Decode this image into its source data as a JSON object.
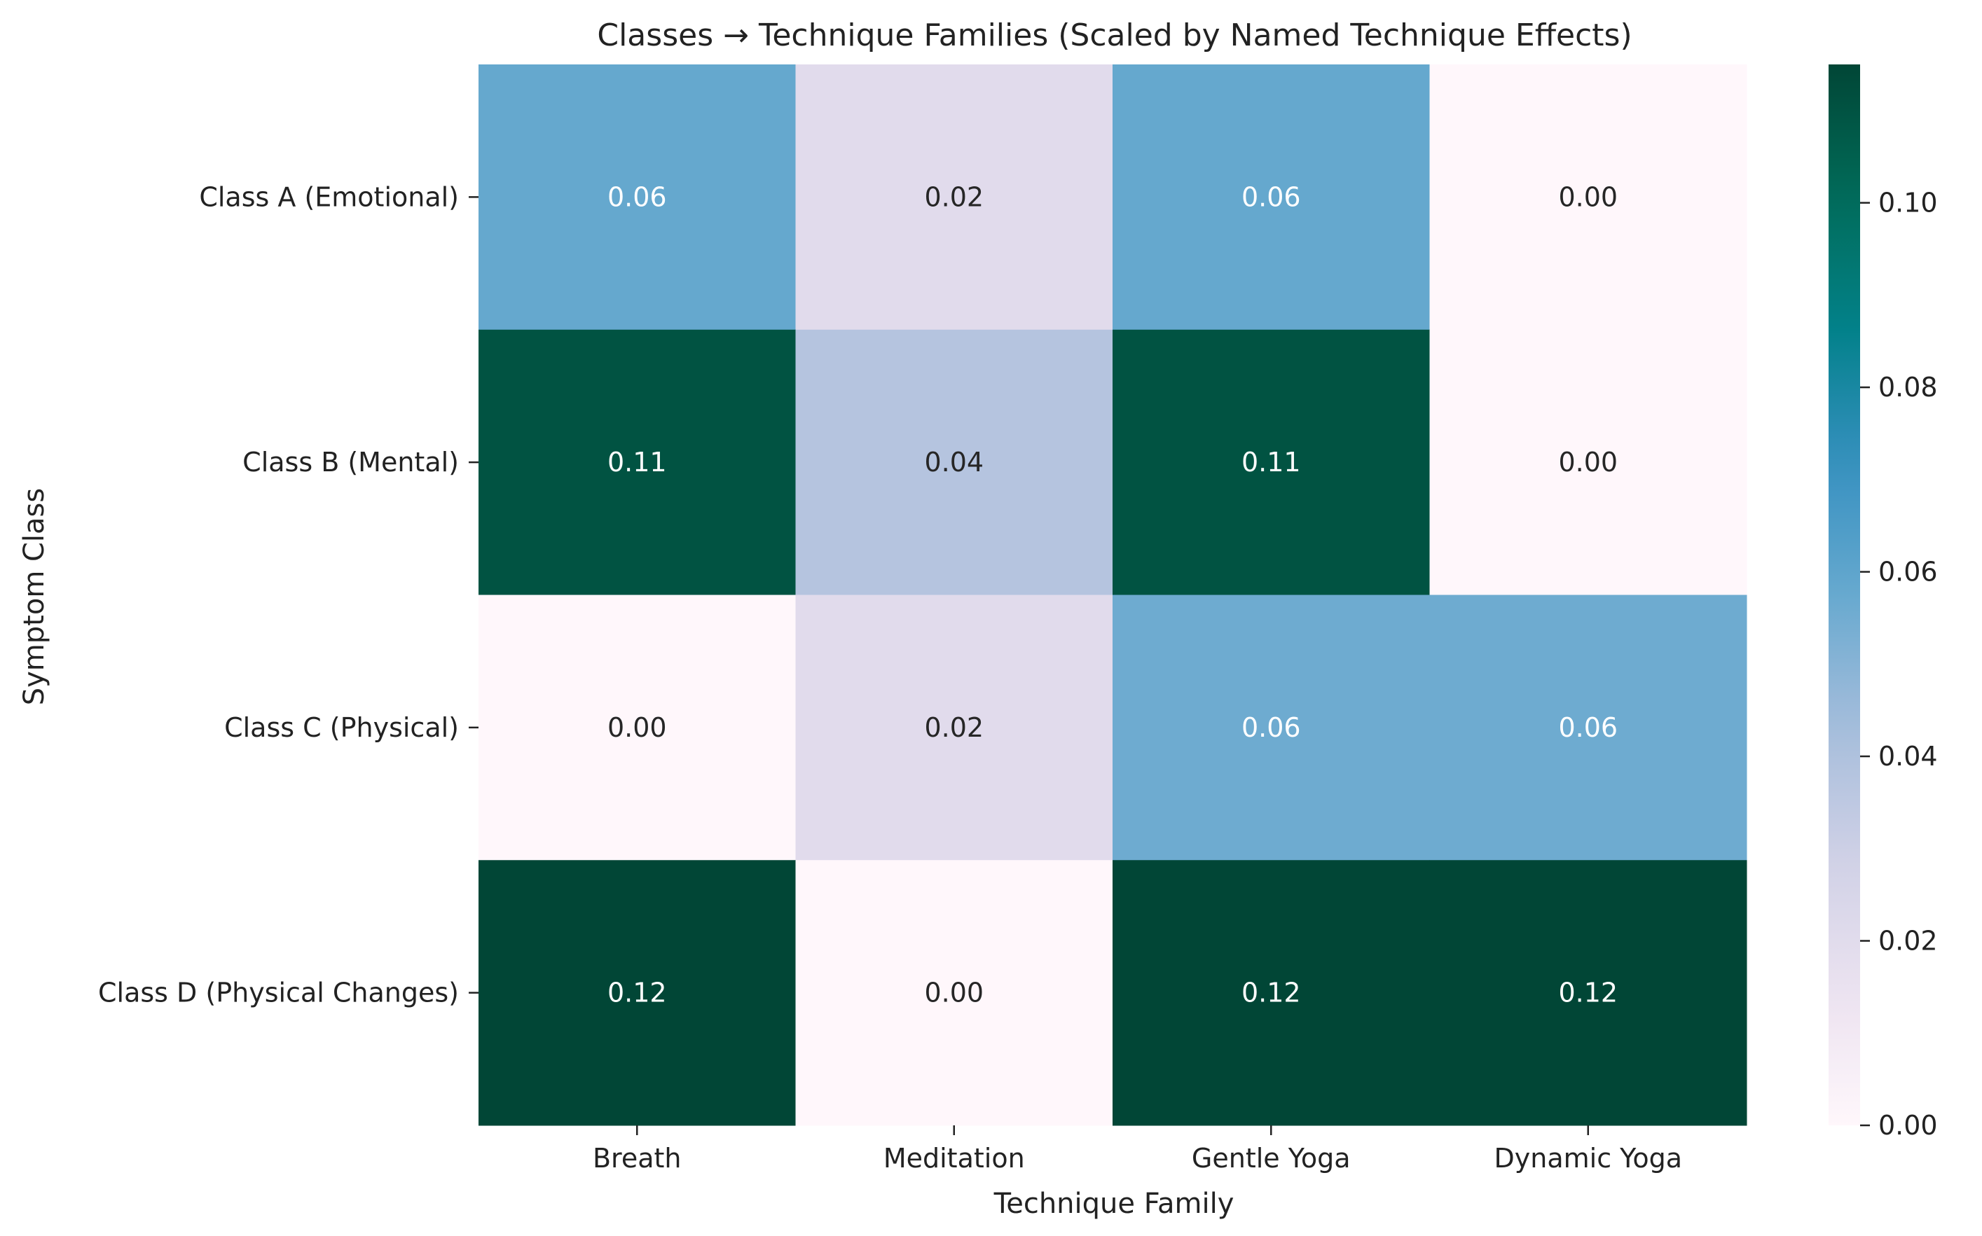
{
  "chart_data": {
    "type": "heatmap",
    "title": "Classes → Technique Families (Scaled by Named Technique Effects)",
    "xlabel": "Technique Family",
    "ylabel": "Symptom Class",
    "x_categories": [
      "Breath",
      "Meditation",
      "Gentle Yoga",
      "Dynamic Yoga"
    ],
    "y_categories": [
      "Class A (Emotional)",
      "Class B (Mental)",
      "Class C (Physical)",
      "Class D (Physical Changes)"
    ],
    "values": [
      [
        0.058,
        0.02,
        0.058,
        0.0
      ],
      [
        0.11,
        0.038,
        0.11,
        0.0
      ],
      [
        0.0,
        0.02,
        0.056,
        0.056
      ],
      [
        0.115,
        0.0,
        0.115,
        0.115
      ]
    ],
    "cell_labels": [
      [
        "0.06",
        "0.02",
        "0.06",
        "0.00"
      ],
      [
        "0.11",
        "0.04",
        "0.11",
        "0.00"
      ],
      [
        "0.00",
        "0.02",
        "0.06",
        "0.06"
      ],
      [
        "0.12",
        "0.00",
        "0.12",
        "0.12"
      ]
    ],
    "colorbar": {
      "colormap": "PuBuGn",
      "range": [
        0,
        0.115
      ],
      "ticks": [
        0.0,
        0.02,
        0.04,
        0.06,
        0.08,
        0.1
      ],
      "tick_labels": [
        "0.00",
        "0.02",
        "0.04",
        "0.06",
        "0.08",
        "0.10"
      ]
    },
    "grid": false
  }
}
